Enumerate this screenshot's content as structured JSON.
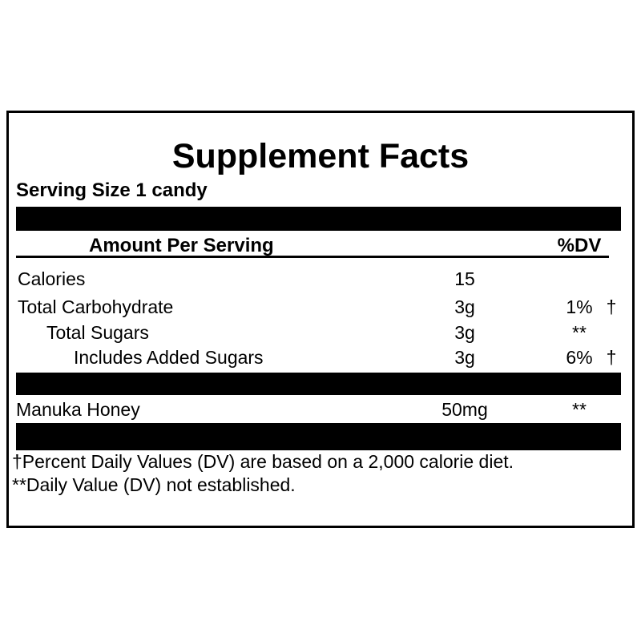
{
  "label": {
    "title": "Supplement Facts",
    "serving_size": "Serving Size 1 candy",
    "header": {
      "amount_column": "Amount Per Serving",
      "dv_column": "%DV"
    },
    "rows": [
      {
        "name": "Calories",
        "amount": "15",
        "dv": "",
        "dagger": ""
      },
      {
        "name": "Total Carbohydrate",
        "amount": "3g",
        "dv": "1%",
        "dagger": "†"
      },
      {
        "name": "Total Sugars",
        "amount": "3g",
        "dv": "**",
        "dagger": ""
      },
      {
        "name": "Includes Added Sugars",
        "amount": "3g",
        "dv": "6%",
        "dagger": "†"
      },
      {
        "name": "Manuka Honey",
        "amount": "50mg",
        "dv": "**",
        "dagger": ""
      }
    ],
    "footnotes": [
      "†Percent Daily Values (DV) are based on a 2,000 calorie diet.",
      "**Daily Value (DV) not established."
    ],
    "colors": {
      "ink": "#000000",
      "background": "#ffffff"
    }
  }
}
